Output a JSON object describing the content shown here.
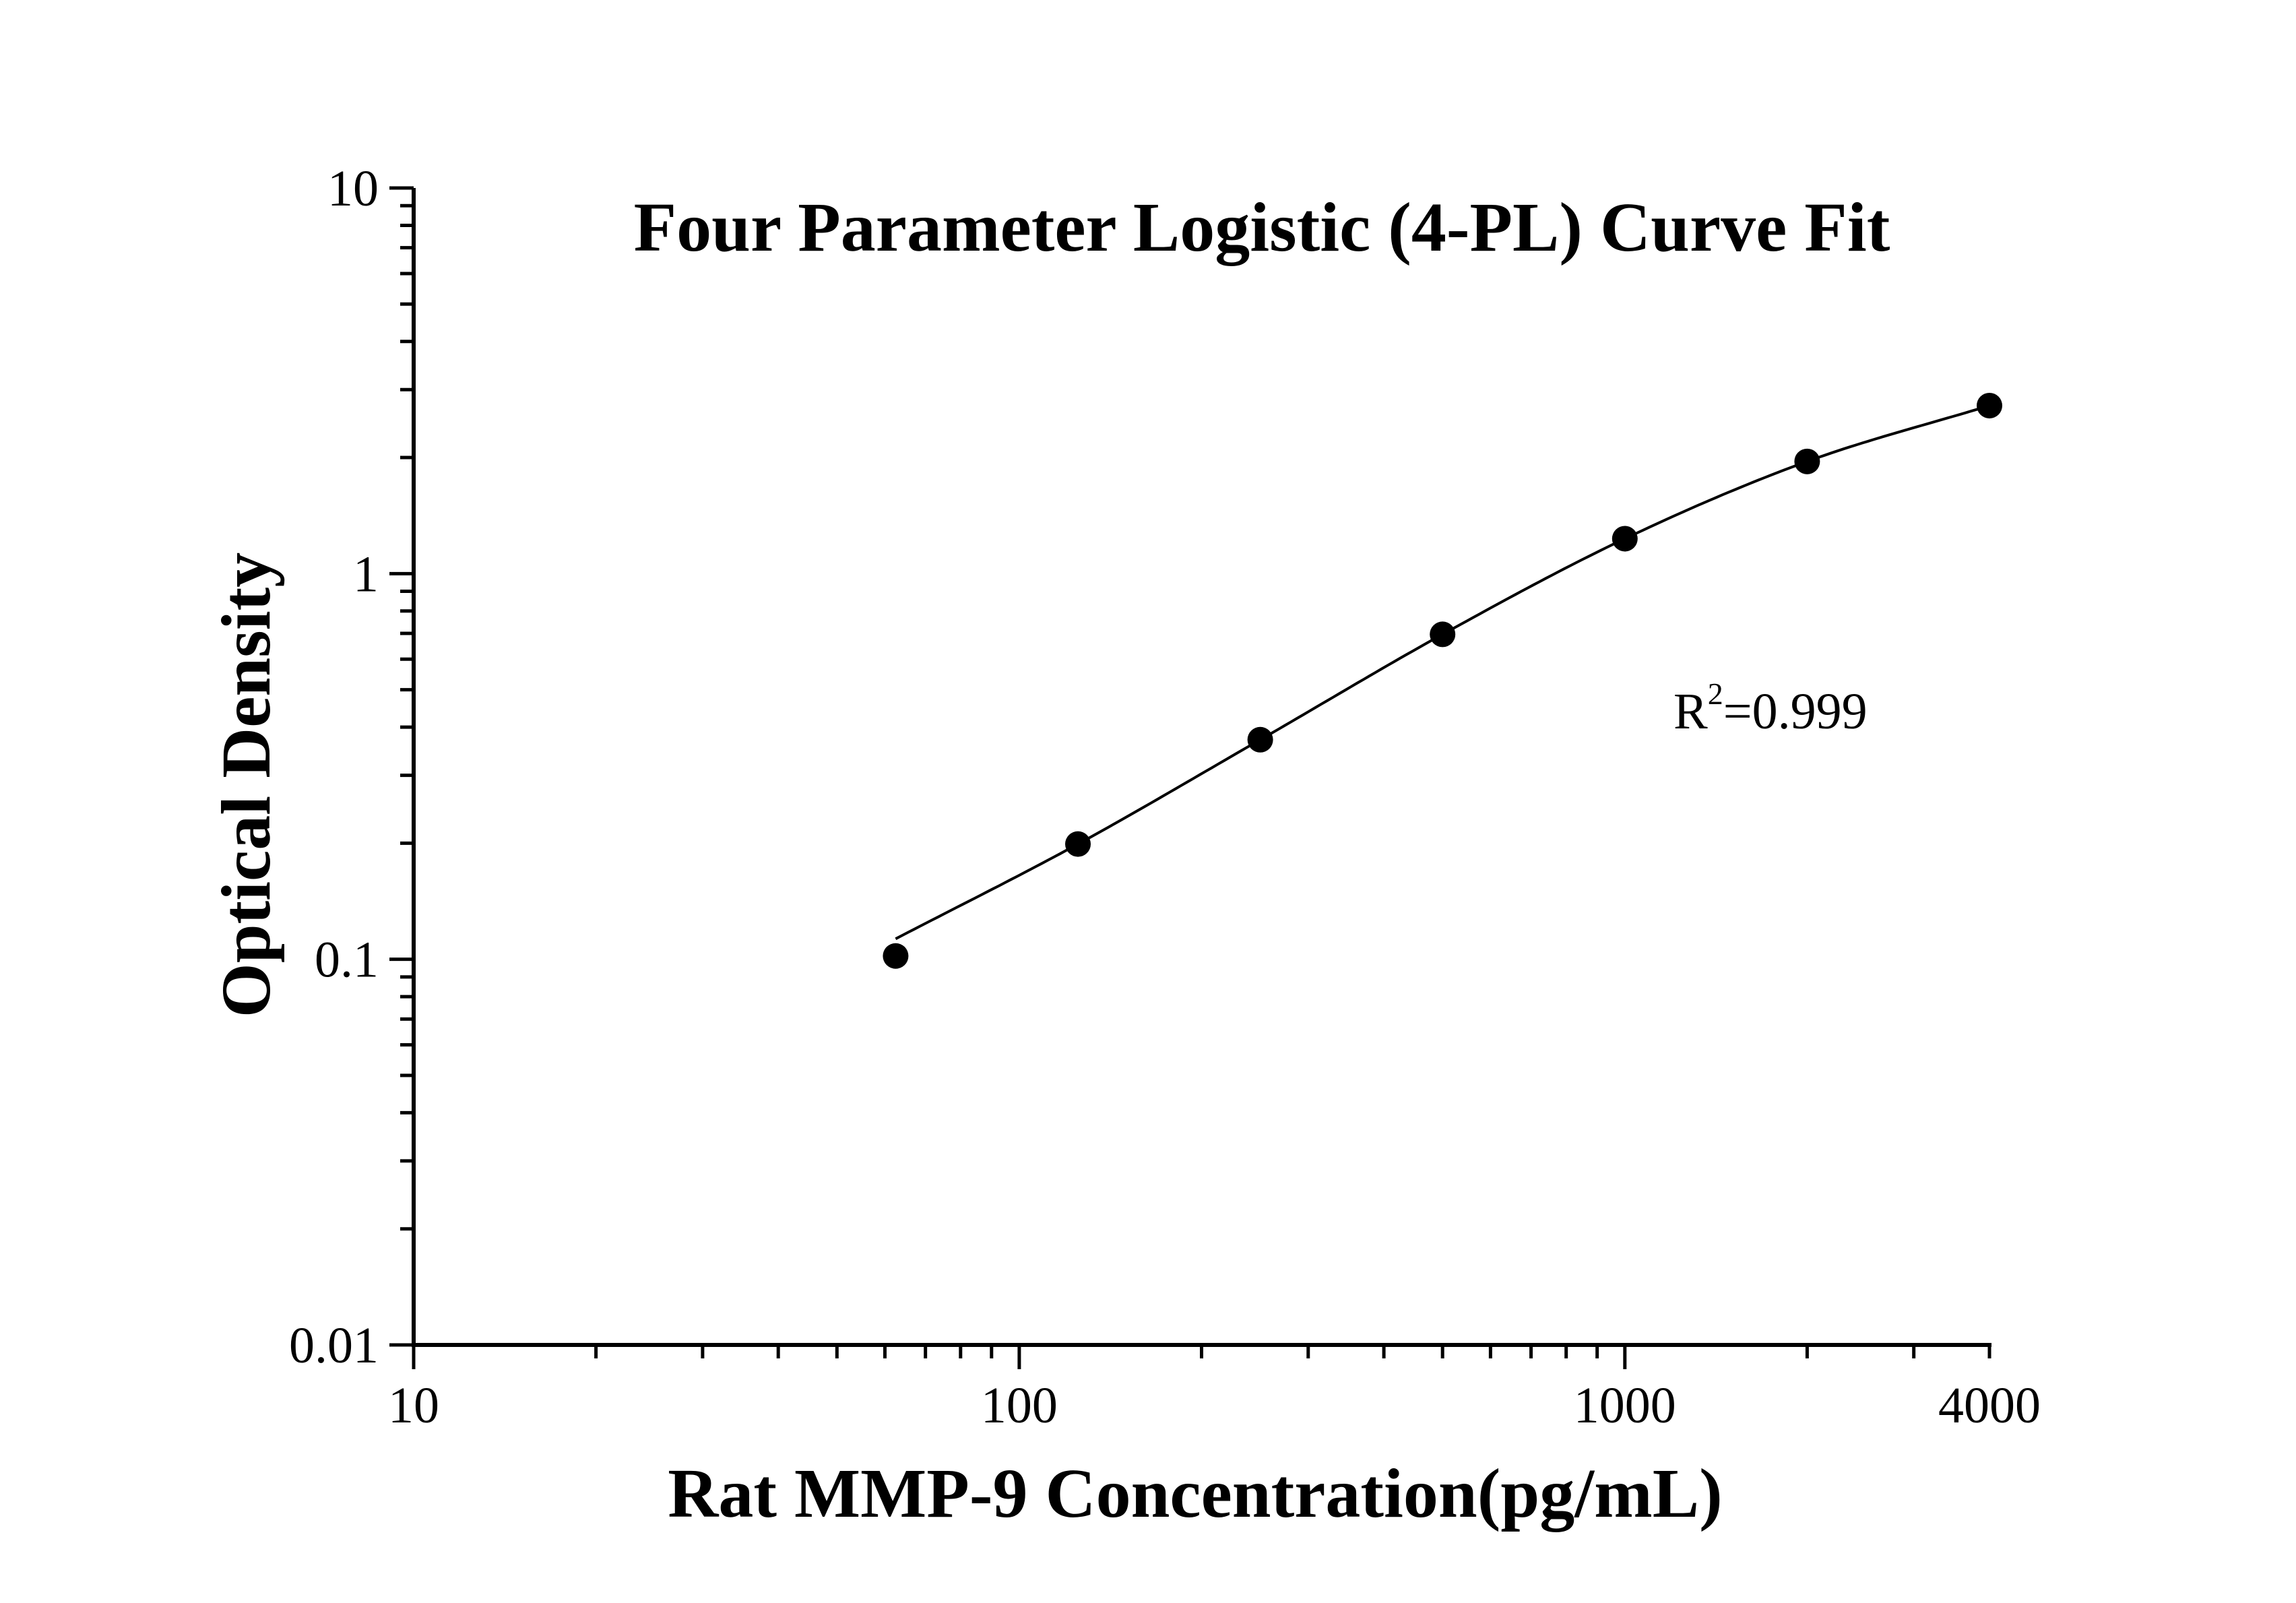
{
  "chart_data": {
    "type": "scatter",
    "title": "Four Parameter Logistic (4-PL) Curve Fit",
    "xlabel": "Rat MMP-9 Concentration(pg/mL)",
    "ylabel": "Optical Density",
    "x_scale": "log",
    "y_scale": "log",
    "xlim": [
      10,
      4000
    ],
    "ylim": [
      0.01,
      10
    ],
    "x_ticks": [
      {
        "value": 10,
        "label": "10"
      },
      {
        "value": 100,
        "label": "100"
      },
      {
        "value": 1000,
        "label": "1000"
      },
      {
        "value": 4000,
        "label": "4000"
      }
    ],
    "y_ticks": [
      {
        "value": 0.01,
        "label": "0.01"
      },
      {
        "value": 0.1,
        "label": "0.1"
      },
      {
        "value": 1,
        "label": "1"
      },
      {
        "value": 10,
        "label": "10"
      }
    ],
    "grid": false,
    "series": [
      {
        "values": [
          {
            "x": 62.5,
            "y": 0.102
          },
          {
            "x": 125,
            "y": 0.199
          },
          {
            "x": 250,
            "y": 0.371
          },
          {
            "x": 500,
            "y": 0.696
          },
          {
            "x": 1000,
            "y": 1.232
          },
          {
            "x": 2000,
            "y": 1.954
          },
          {
            "x": 4000,
            "y": 2.727
          }
        ]
      }
    ],
    "fit_curve": {
      "model": "4-PL",
      "x_range": [
        62.5,
        4000
      ],
      "y_start": 0.113,
      "y_end": 2.727
    },
    "annotation": {
      "r_label": "R",
      "r_sup": "2",
      "r_value": "=0.999"
    }
  }
}
